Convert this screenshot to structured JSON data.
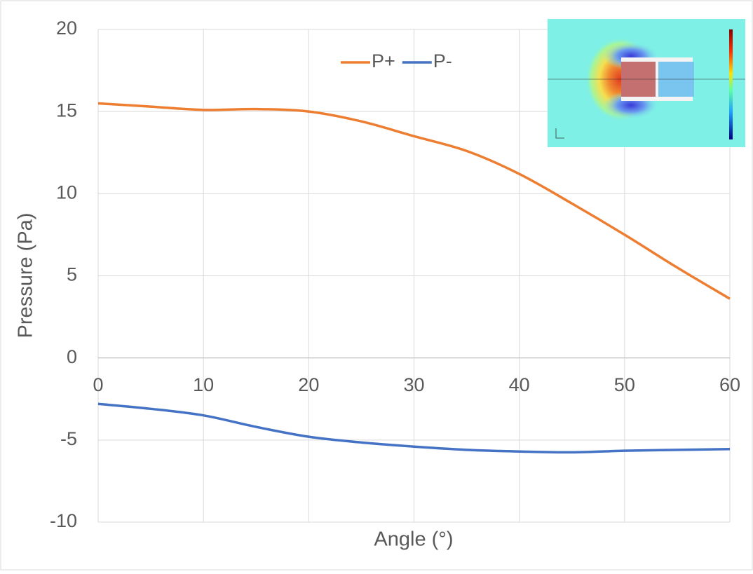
{
  "chart_data": {
    "type": "line",
    "x_label": "Angle (°)",
    "y_label": "Pressure (Pa)",
    "x": [
      0,
      5,
      10,
      15,
      20,
      25,
      30,
      35,
      40,
      45,
      50,
      55,
      60
    ],
    "series": [
      {
        "name": "P+",
        "color": "#ED7D31",
        "values": [
          15.5,
          15.3,
          15.1,
          15.15,
          15.0,
          14.4,
          13.5,
          12.6,
          11.2,
          9.4,
          7.5,
          5.5,
          3.6
        ]
      },
      {
        "name": "P-",
        "color": "#4472C4",
        "values": [
          -2.8,
          -3.1,
          -3.5,
          -4.2,
          -4.8,
          -5.15,
          -5.4,
          -5.6,
          -5.7,
          -5.75,
          -5.65,
          -5.6,
          -5.55
        ]
      }
    ],
    "xlim": [
      0,
      60
    ],
    "xticks": [
      0,
      10,
      20,
      30,
      40,
      50,
      60
    ],
    "ylim": [
      -10,
      20
    ],
    "yticks": [
      -10,
      -5,
      0,
      5,
      10,
      15,
      20
    ],
    "grid": true,
    "legend": "top"
  }
}
